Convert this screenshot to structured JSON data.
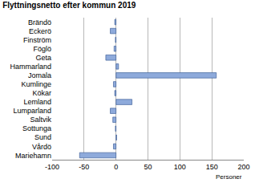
{
  "chart_data": {
    "type": "bar",
    "orientation": "horizontal",
    "title": "Flyttningsnetto efter kommun 2019",
    "xlabel": "Personer",
    "categories": [
      "Brändö",
      "Eckerö",
      "Finström",
      "Föglö",
      "Geta",
      "Hammarland",
      "Jomala",
      "Kumlinge",
      "Kökar",
      "Lemland",
      "Lumparland",
      "Saltvik",
      "Sottunga",
      "Sund",
      "Vårdö",
      "Mariehamn"
    ],
    "values": [
      -2,
      -9,
      -1,
      -3,
      -16,
      4,
      157,
      -4,
      -2,
      25,
      -9,
      -5,
      -1,
      1,
      -4,
      -57
    ],
    "color": "#8eaadb",
    "xlim": [
      -100,
      200
    ],
    "xticks": [
      -100,
      -50,
      0,
      50,
      100,
      150,
      200
    ],
    "grid": true
  }
}
